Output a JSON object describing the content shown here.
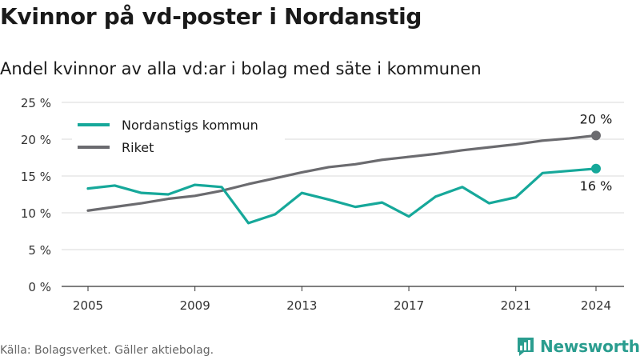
{
  "title": "Kvinnor på vd-poster i Nordanstig",
  "subtitle": "Andel kvinnor av alla vd:ar i bolag med säte i kommunen",
  "source": "Källa: Bolagsverket. Gäller aktiebolag.",
  "brand": {
    "name": "Newsworthy",
    "icon": "newsworthy-logo-icon",
    "color": "#2a9d8f"
  },
  "chart_data": {
    "type": "line",
    "x": [
      2005,
      2006,
      2007,
      2008,
      2009,
      2010,
      2011,
      2012,
      2013,
      2014,
      2015,
      2016,
      2017,
      2018,
      2019,
      2020,
      2021,
      2022,
      2023,
      2024
    ],
    "x_ticks": [
      "2005",
      "2009",
      "2013",
      "2017",
      "2021",
      "2024"
    ],
    "ylim": [
      0,
      25
    ],
    "y_ticks": [
      "0 %",
      "5 %",
      "10 %",
      "15 %",
      "20 %",
      "25 %"
    ],
    "grid": true,
    "legend_position": "top-left",
    "series": [
      {
        "name": "Nordanstigs kommun",
        "color": "#16a89a",
        "values": [
          13.3,
          13.7,
          12.7,
          12.5,
          13.8,
          13.5,
          8.6,
          9.8,
          12.7,
          11.8,
          10.8,
          11.4,
          9.5,
          12.2,
          13.5,
          11.3,
          12.1,
          15.4,
          15.7,
          16.0
        ],
        "end_label": "16 %",
        "end_label_position": "below"
      },
      {
        "name": "Riket",
        "color": "#6b6b6f",
        "values": [
          10.3,
          10.8,
          11.3,
          11.9,
          12.3,
          13.0,
          13.9,
          14.7,
          15.5,
          16.2,
          16.6,
          17.2,
          17.6,
          18.0,
          18.5,
          18.9,
          19.3,
          19.8,
          20.1,
          20.5
        ],
        "end_label": "20 %",
        "end_label_position": "above"
      }
    ]
  }
}
